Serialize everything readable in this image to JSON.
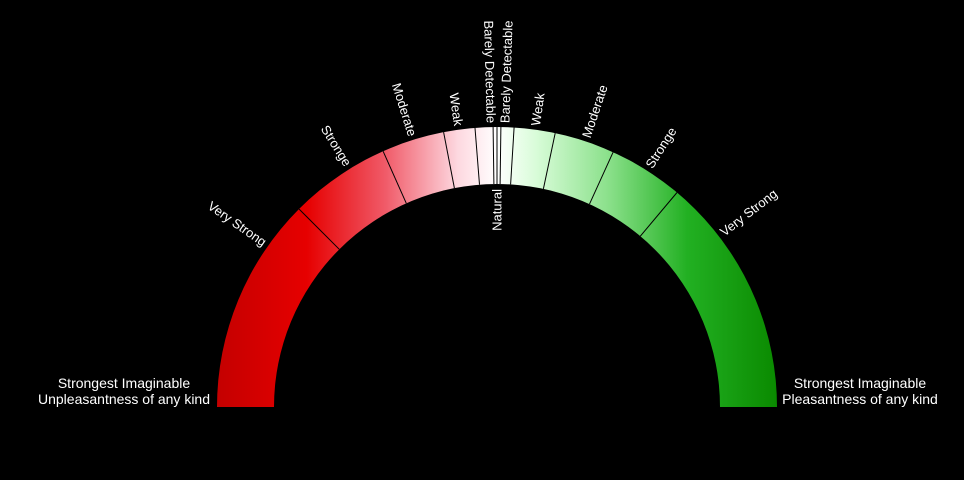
{
  "scale": {
    "left_end": {
      "line1": "Strongest Imaginable",
      "line2": "Unpleasantness of any kind"
    },
    "right_end": {
      "line1": "Strongest Imaginable",
      "line2": "Pleasantness of any kind"
    },
    "center_label": "Natural",
    "left_labels": {
      "very_strong": "Very Strong",
      "stronge": "Stronge",
      "moderate": "Moderate",
      "weak": "Weak",
      "barely": "Barely Detectable"
    },
    "right_labels": {
      "barely": "Barely Detectable",
      "weak": "Weak",
      "moderate": "Moderate",
      "stronge": "Stronge",
      "very_strong": "Very Strong"
    },
    "colors": {
      "unpleasant_strong": "#d40000",
      "unpleasant_light": "#ffffff",
      "pleasant_light": "#ffffff",
      "pleasant_strong": "#0a8a00",
      "background": "#000000"
    }
  }
}
